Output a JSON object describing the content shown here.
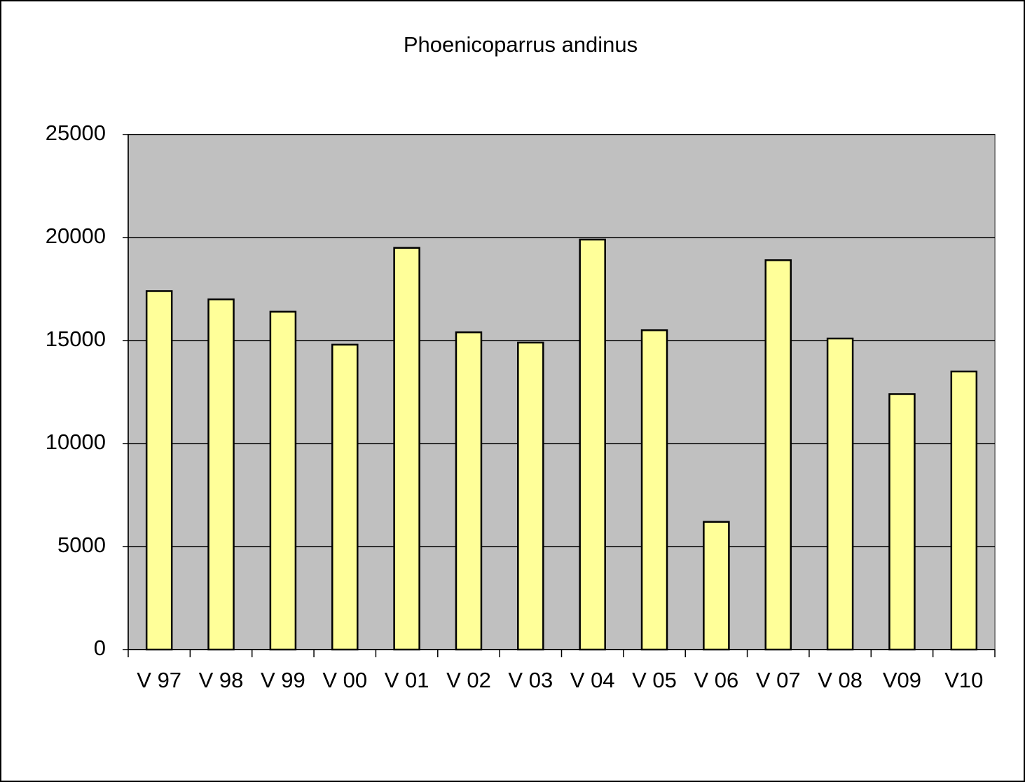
{
  "chart_data": {
    "type": "bar",
    "title": "Phoenicoparrus  andinus",
    "categories": [
      "V 97",
      "V 98",
      "V 99",
      "V 00",
      "V 01",
      "V 02",
      "V 03",
      "V 04",
      "V 05",
      "V 06",
      "V 07",
      "V 08",
      "V09",
      "V10"
    ],
    "values": [
      17400,
      17000,
      16400,
      14800,
      19500,
      15400,
      14900,
      19900,
      15500,
      6200,
      18900,
      15100,
      12400,
      13500
    ],
    "color": "#ffff99",
    "plot_background": "#c0c0c0",
    "ylim": [
      0,
      25000
    ],
    "yticks": [
      0,
      5000,
      10000,
      15000,
      20000,
      25000
    ],
    "grid": true
  }
}
